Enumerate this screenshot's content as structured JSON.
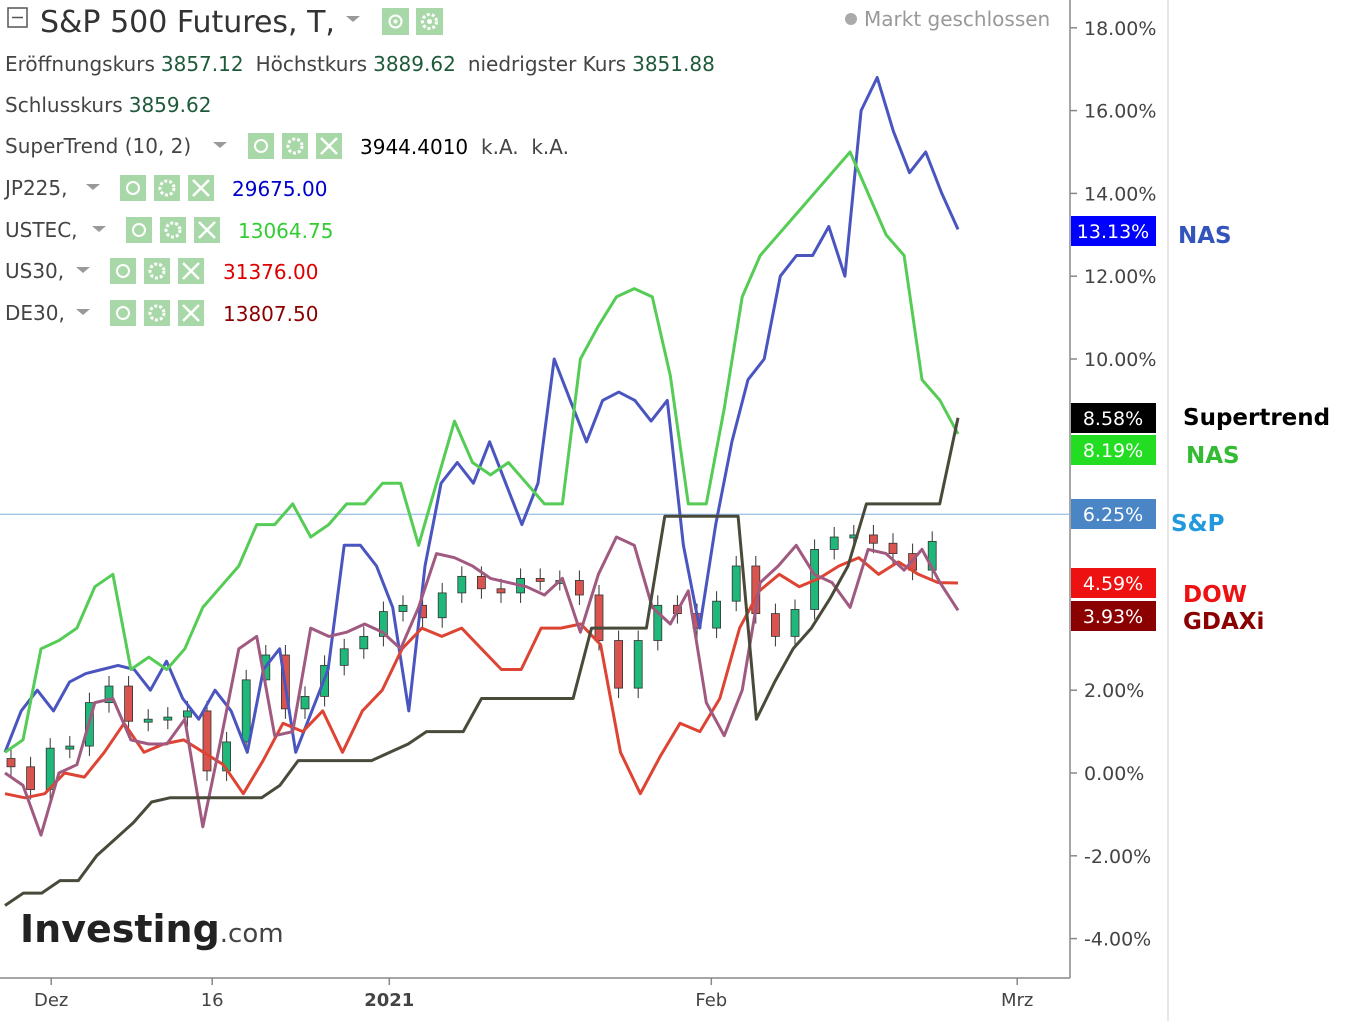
{
  "header": {
    "title": "S&P 500 Futures, T,",
    "market_status": "Markt geschlossen",
    "ohlc": [
      {
        "label": "Eröffnungskurs",
        "value": "3857.12"
      },
      {
        "label": "Höchstkurs",
        "value": "3889.62"
      },
      {
        "label": "niedrigster Kurs",
        "value": "3851.88"
      },
      {
        "label": "Schlusskurs",
        "value": "3859.62"
      }
    ]
  },
  "legend": [
    {
      "label": "SuperTrend (10, 2)",
      "value": "3944.4010",
      "extra": "k.A.  k.A.",
      "color": "#000000"
    },
    {
      "label": "JP225,",
      "value": "29675.00",
      "color": "#0000cc"
    },
    {
      "label": "USTEC,",
      "value": "13064.75",
      "color": "#33cc33"
    },
    {
      "label": "US30,",
      "value": "31376.00",
      "color": "#dd0000"
    },
    {
      "label": "DE30,",
      "value": "13807.50",
      "color": "#8b0000"
    }
  ],
  "logo": {
    "main": "Investing",
    "suffix": ".com"
  },
  "badges": [
    {
      "text": "13.13%",
      "value": 13.13,
      "color": "#0000ff"
    },
    {
      "text": "8.58%",
      "value": 8.58,
      "color": "#000000"
    },
    {
      "text": "8.19%",
      "value": 8.19,
      "color": "#22dd22"
    },
    {
      "text": "6.25%",
      "value": 6.25,
      "color": "#4a86c5"
    },
    {
      "text": "4.59%",
      "value": 4.59,
      "color": "#ee1111"
    },
    {
      "text": "3.93%",
      "value": 3.93,
      "color": "#8b0000"
    }
  ],
  "annotations": [
    {
      "text": "NAS",
      "color": "#3355bb"
    },
    {
      "text": "Supertrend",
      "color": "#000000"
    },
    {
      "text": "NAS",
      "color": "#33bb33"
    },
    {
      "text": "S&P",
      "color": "#2299dd"
    },
    {
      "text": "DOW",
      "color": "#ee1111"
    },
    {
      "text": "GDAXi",
      "color": "#8b0000"
    }
  ],
  "chart_data": {
    "type": "line",
    "title": "S&P 500 Futures, T,",
    "y_axis": {
      "min": -4,
      "max": 18,
      "ticks": [
        "18.00%",
        "16.00%",
        "14.00%",
        "12.00%",
        "10.00%",
        "2.00%",
        "0.00%",
        "-2.00%",
        "-4.00%"
      ],
      "tick_values": [
        18,
        16,
        14,
        12,
        10,
        2,
        0,
        -2,
        -4
      ],
      "gridlines": false
    },
    "x_axis": {
      "ticks": [
        "Dez",
        "16",
        "2021",
        "Feb",
        "Mrz"
      ],
      "tick_index": [
        2,
        12,
        23,
        43,
        62
      ]
    },
    "sp500_last_percent": 6.25,
    "series": [
      {
        "name": "JP225",
        "color": "#4a55c0",
        "values": [
          0.5,
          1.5,
          2,
          1.5,
          2.2,
          2.4,
          2.5,
          2.6,
          2.5,
          2,
          2.7,
          1.8,
          1.3,
          2,
          1.5,
          0.5,
          2.5,
          3,
          0.5,
          1.5,
          2.5,
          5.5,
          5.5,
          5,
          4,
          1.5,
          5,
          7,
          7.5,
          7,
          8,
          7,
          6,
          7,
          10,
          9,
          8,
          9,
          9.2,
          9,
          8.5,
          9,
          5.5,
          3.5,
          6,
          8,
          9.5,
          10,
          12,
          12.5,
          12.5,
          13.2,
          12,
          16,
          16.8,
          15.5,
          14.5,
          15,
          14,
          13.13
        ]
      },
      {
        "name": "USTEC",
        "color": "#55cc55",
        "values": [
          0.5,
          0.8,
          3,
          3.2,
          3.5,
          4.5,
          4.8,
          2.5,
          2.8,
          2.5,
          3,
          4,
          4.5,
          5,
          6,
          6,
          6.5,
          5.7,
          6,
          6.5,
          6.5,
          7,
          7,
          5.5,
          7,
          8.5,
          7.5,
          7.2,
          7.5,
          7,
          6.5,
          6.5,
          10,
          10.8,
          11.5,
          11.7,
          11.5,
          9.6,
          6.5,
          6.5,
          8.8,
          11.5,
          12.5,
          13,
          13.5,
          14,
          14.5,
          15,
          14,
          13,
          12.5,
          9.5,
          9,
          8.19
        ]
      },
      {
        "name": "US30",
        "color": "#dd4433",
        "values": [
          -0.5,
          -0.6,
          -0.5,
          0,
          -0.1,
          0.5,
          1.2,
          0.5,
          0.7,
          0.8,
          0.5,
          0.2,
          -0.5,
          0.3,
          1.2,
          1,
          1.5,
          0.5,
          1.5,
          2,
          3,
          3.5,
          3.3,
          3.5,
          3,
          2.5,
          2.5,
          3.5,
          3.5,
          3.6,
          3.1,
          0.5,
          -0.5,
          0.4,
          1.2,
          1,
          1.8,
          3.5,
          4.4,
          4.8,
          4.5,
          4.7,
          5,
          5.2,
          4.8,
          5.1,
          4.8,
          4.6,
          4.59
        ]
      },
      {
        "name": "DE30",
        "color": "#a05a80",
        "values": [
          0,
          -0.3,
          -1.5,
          0,
          0.2,
          1.7,
          1.8,
          0.8,
          0.7,
          0.7,
          1.3,
          -1.3,
          0.8,
          3,
          3.3,
          0.9,
          1,
          3.5,
          3.3,
          3.4,
          3.6,
          3.4,
          3,
          4,
          5.3,
          5.2,
          5,
          4.7,
          4.6,
          4.5,
          4.3,
          4.7,
          3.4,
          4.8,
          5.7,
          5.5,
          4,
          3.6,
          4.4,
          1.7,
          0.9,
          2,
          4.6,
          5,
          5.5,
          4.8,
          4.6,
          4,
          5.4,
          5.3,
          4.9,
          5.4,
          4.6,
          3.93
        ]
      },
      {
        "name": "SuperTrend (10, 2)",
        "color": "#4a4a3a",
        "values": [
          -3.2,
          -2.9,
          -2.9,
          -2.6,
          -2.6,
          -2,
          -1.6,
          -1.2,
          -0.7,
          -0.6,
          -0.6,
          -0.6,
          -0.6,
          -0.6,
          -0.6,
          -0.3,
          0.3,
          0.3,
          0.3,
          0.3,
          0.3,
          0.5,
          0.7,
          1,
          1,
          1,
          1.8,
          1.8,
          1.8,
          1.8,
          1.8,
          1.8,
          3.5,
          3.5,
          3.5,
          3.5,
          6.2,
          6.2,
          6.2,
          6.2,
          6.2,
          1.3,
          2.2,
          3,
          3.5,
          4.2,
          5,
          6.5,
          6.5,
          6.5,
          6.5,
          6.5,
          8.58
        ]
      }
    ]
  }
}
